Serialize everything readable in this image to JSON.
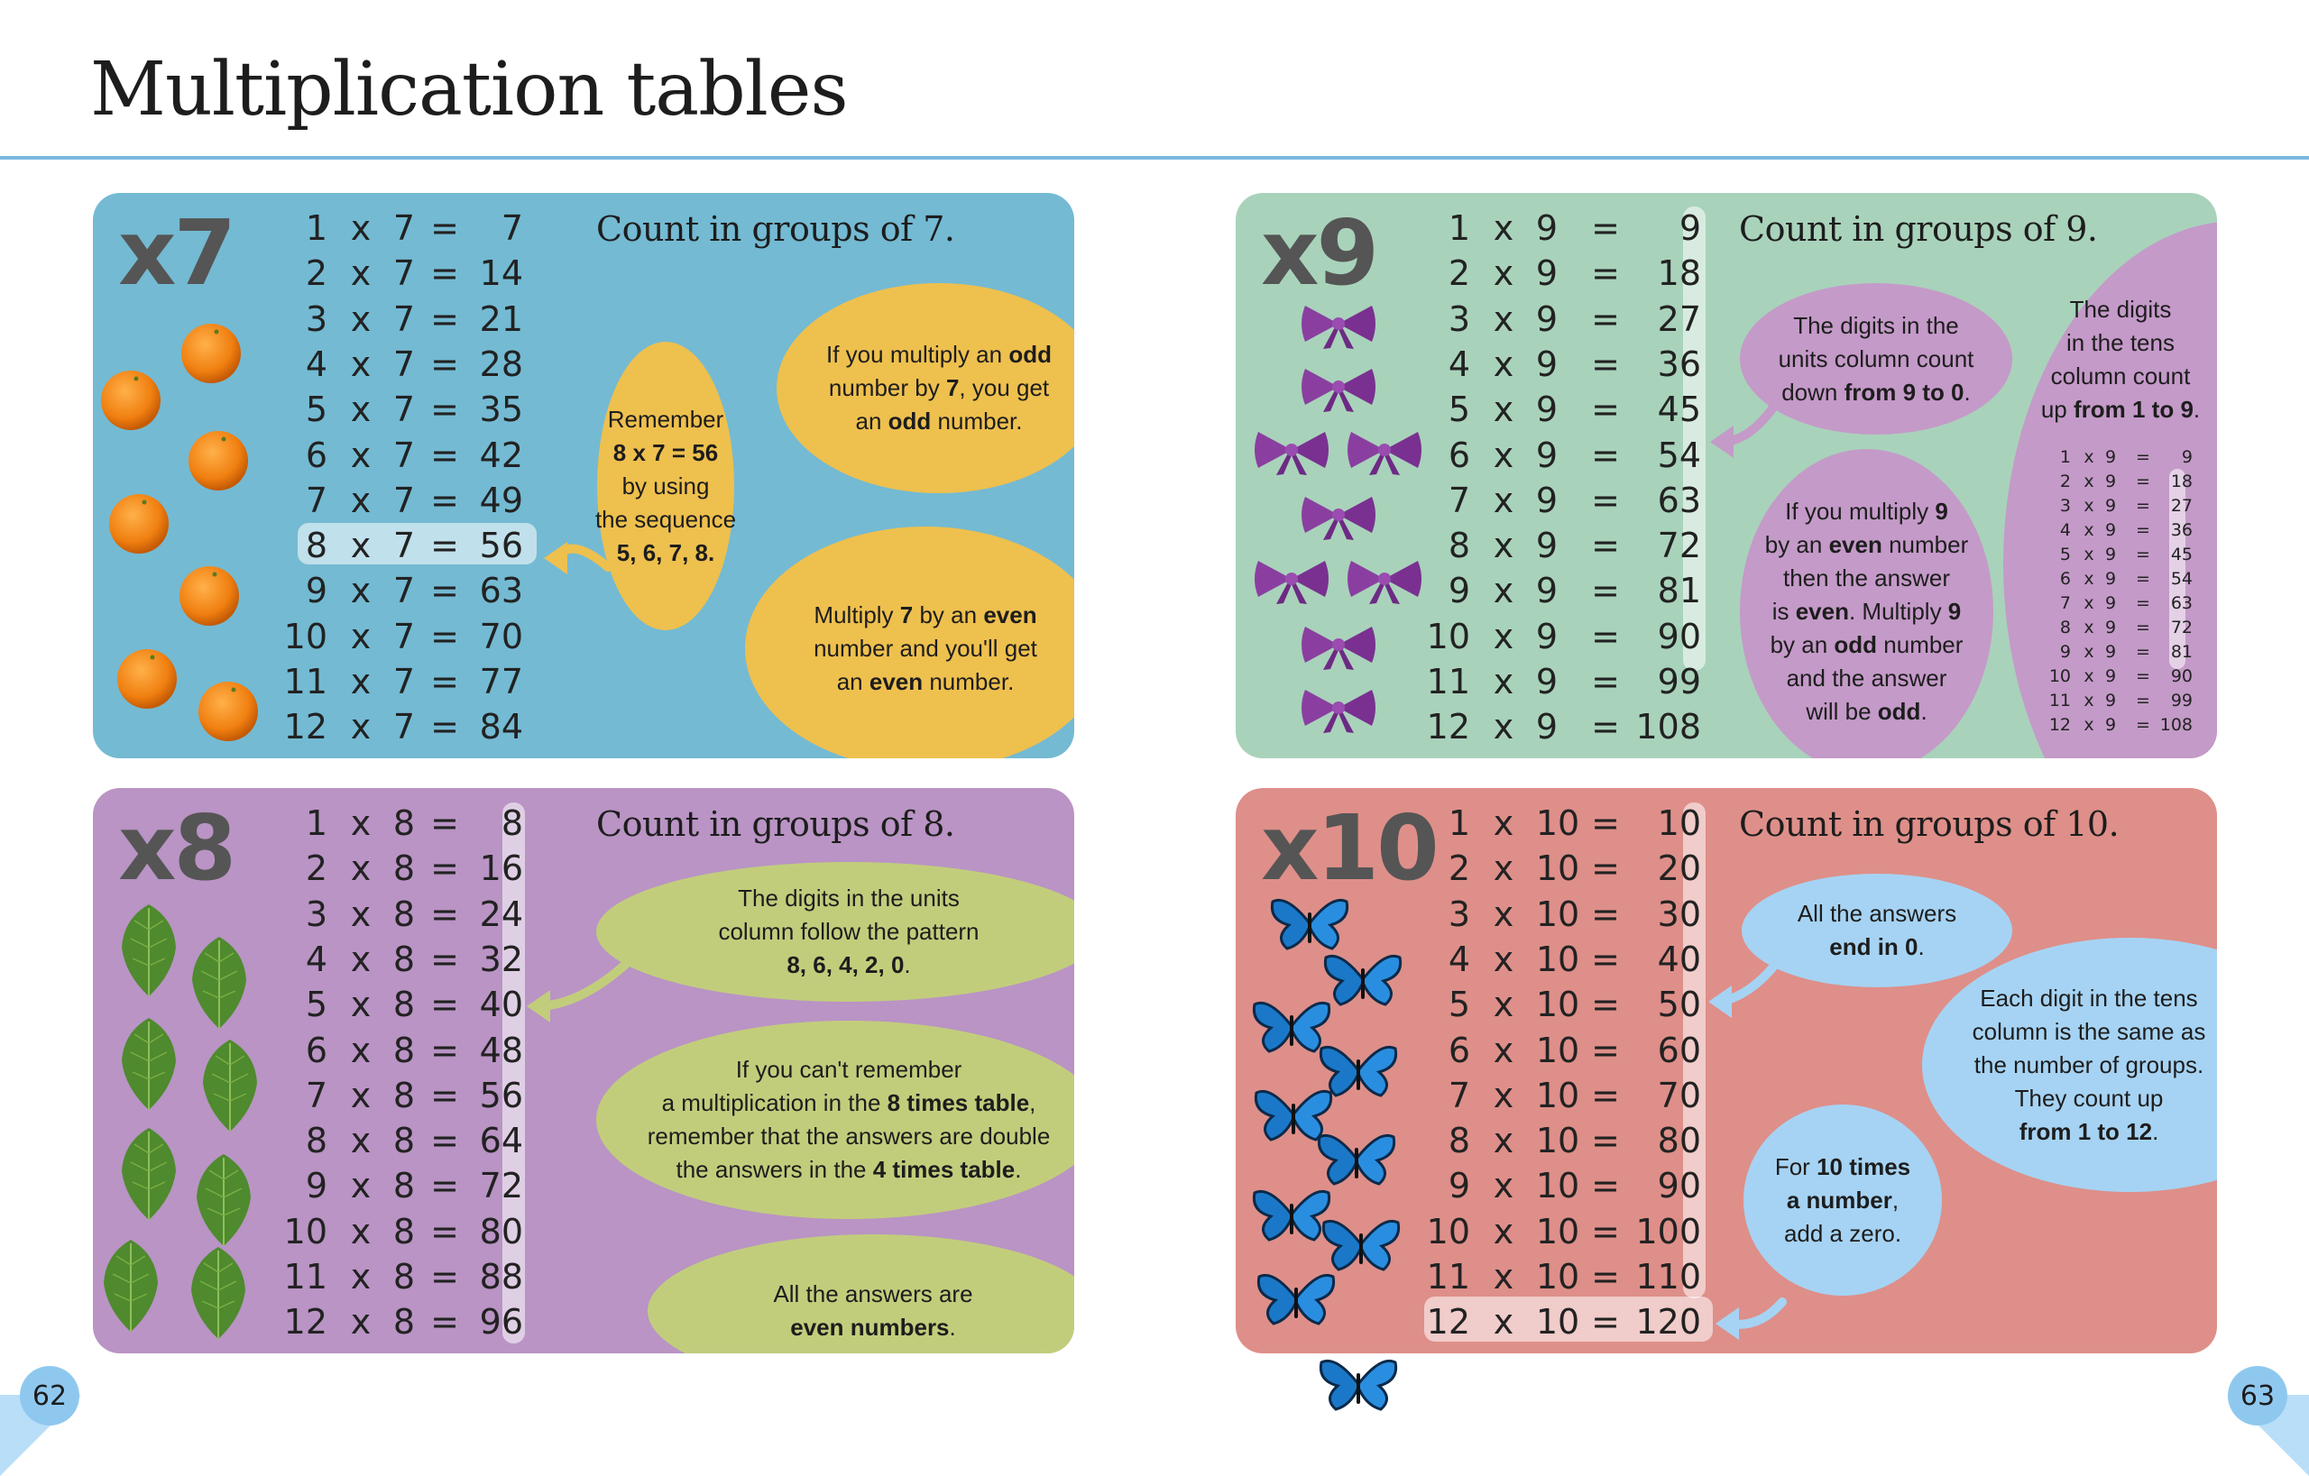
{
  "title": "Multiplication tables",
  "colors": {
    "rule": "#7ab8e0",
    "x7_panel": "#74bad3",
    "x7_bubble": "#eec04e",
    "x9_panel": "#a9d2bb",
    "x9_bubble": "#c49ac8",
    "x8_panel": "#b994c4",
    "x8_bubble": "#c2cd7c",
    "x10_panel": "#de8f89",
    "x10_bubble": "#a6d3f3"
  },
  "panels": [
    {
      "id": "x7",
      "label": "x7",
      "heading": "Count in groups of 7.",
      "icon": "orange-icon",
      "rows": [
        [
          "1",
          "x",
          "7",
          "=",
          "7"
        ],
        [
          "2",
          "x",
          "7",
          "=",
          "14"
        ],
        [
          "3",
          "x",
          "7",
          "=",
          "21"
        ],
        [
          "4",
          "x",
          "7",
          "=",
          "28"
        ],
        [
          "5",
          "x",
          "7",
          "=",
          "35"
        ],
        [
          "6",
          "x",
          "7",
          "=",
          "42"
        ],
        [
          "7",
          "x",
          "7",
          "=",
          "49"
        ],
        [
          "8",
          "x",
          "7",
          "=",
          "56"
        ],
        [
          "9",
          "x",
          "7",
          "=",
          "63"
        ],
        [
          "10",
          "x",
          "7",
          "=",
          "70"
        ],
        [
          "11",
          "x",
          "7",
          "=",
          "77"
        ],
        [
          "12",
          "x",
          "7",
          "=",
          "84"
        ]
      ],
      "highlighted_row": "8 x 7 = 56",
      "bubbles": [
        {
          "lines": [
            [
              [
                "If you multiply an ",
                false
              ],
              [
                "odd",
                true
              ]
            ],
            [
              [
                "number by ",
                false
              ],
              [
                "7",
                true
              ],
              [
                ", you get",
                false
              ]
            ],
            [
              [
                "an ",
                false
              ],
              [
                "odd",
                true
              ],
              [
                "  number.",
                false
              ]
            ]
          ]
        },
        {
          "lines": [
            [
              [
                "Remember",
                false
              ]
            ],
            [
              [
                "8 x 7 = 56",
                true
              ]
            ],
            [
              [
                "by using",
                false
              ]
            ],
            [
              [
                "the sequence",
                false
              ]
            ],
            [
              [
                "5, 6, 7, 8.",
                true
              ]
            ]
          ]
        },
        {
          "lines": [
            [
              [
                "Multiply ",
                false
              ],
              [
                "7",
                true
              ],
              [
                " by an ",
                false
              ],
              [
                "even",
                true
              ]
            ],
            [
              [
                "number and you'll get",
                false
              ]
            ],
            [
              [
                "an ",
                false
              ],
              [
                "even",
                true
              ],
              [
                " number.",
                false
              ]
            ]
          ]
        }
      ]
    },
    {
      "id": "x9",
      "label": "x9",
      "heading": "Count in groups of 9.",
      "icon": "bow-icon",
      "rows": [
        [
          "1",
          "x",
          "9",
          "=",
          "9"
        ],
        [
          "2",
          "x",
          "9",
          "=",
          "18"
        ],
        [
          "3",
          "x",
          "9",
          "=",
          "27"
        ],
        [
          "4",
          "x",
          "9",
          "=",
          "36"
        ],
        [
          "5",
          "x",
          "9",
          "=",
          "45"
        ],
        [
          "6",
          "x",
          "9",
          "=",
          "54"
        ],
        [
          "7",
          "x",
          "9",
          "=",
          "63"
        ],
        [
          "8",
          "x",
          "9",
          "=",
          "72"
        ],
        [
          "9",
          "x",
          "9",
          "=",
          "81"
        ],
        [
          "10",
          "x",
          "9",
          "=",
          "90"
        ],
        [
          "11",
          "x",
          "9",
          "=",
          "99"
        ],
        [
          "12",
          "x",
          "9",
          "=",
          "108"
        ]
      ],
      "bubbles": [
        {
          "lines": [
            [
              [
                "The digits in the",
                false
              ]
            ],
            [
              [
                "units column count",
                false
              ]
            ],
            [
              [
                "down ",
                false
              ],
              [
                "from 9 to 0",
                true
              ],
              [
                ".",
                false
              ]
            ]
          ]
        },
        {
          "lines": [
            [
              [
                "If you multiply ",
                false
              ],
              [
                "9",
                true
              ]
            ],
            [
              [
                "by an ",
                false
              ],
              [
                "even",
                true
              ],
              [
                " number",
                false
              ]
            ],
            [
              [
                "then the answer",
                false
              ]
            ],
            [
              [
                "is ",
                false
              ],
              [
                "even",
                true
              ],
              [
                ". Multiply ",
                false
              ],
              [
                "9",
                true
              ]
            ],
            [
              [
                "by an ",
                false
              ],
              [
                "odd",
                true
              ],
              [
                " number",
                false
              ]
            ],
            [
              [
                "and the answer",
                false
              ]
            ],
            [
              [
                "will be ",
                false
              ],
              [
                "odd",
                true
              ],
              [
                ".",
                false
              ]
            ]
          ]
        },
        {
          "lines": [
            [
              [
                "The digits",
                false
              ]
            ],
            [
              [
                "in the tens",
                false
              ]
            ],
            [
              [
                "column count",
                false
              ]
            ],
            [
              [
                "up ",
                false
              ],
              [
                "from 1 to 9",
                true
              ],
              [
                ".",
                false
              ]
            ]
          ]
        }
      ],
      "mini_rows": [
        [
          "1",
          "x",
          "9",
          "=",
          "9"
        ],
        [
          "2",
          "x",
          "9",
          "=",
          "18"
        ],
        [
          "3",
          "x",
          "9",
          "=",
          "27"
        ],
        [
          "4",
          "x",
          "9",
          "=",
          "36"
        ],
        [
          "5",
          "x",
          "9",
          "=",
          "45"
        ],
        [
          "6",
          "x",
          "9",
          "=",
          "54"
        ],
        [
          "7",
          "x",
          "9",
          "=",
          "63"
        ],
        [
          "8",
          "x",
          "9",
          "=",
          "72"
        ],
        [
          "9",
          "x",
          "9",
          "=",
          "81"
        ],
        [
          "10",
          "x",
          "9",
          "=",
          "90"
        ],
        [
          "11",
          "x",
          "9",
          "=",
          "99"
        ],
        [
          "12",
          "x",
          "9",
          "=",
          "108"
        ]
      ]
    },
    {
      "id": "x8",
      "label": "x8",
      "heading": "Count in groups of 8.",
      "icon": "leaf-icon",
      "rows": [
        [
          "1",
          "x",
          "8",
          "=",
          "8"
        ],
        [
          "2",
          "x",
          "8",
          "=",
          "16"
        ],
        [
          "3",
          "x",
          "8",
          "=",
          "24"
        ],
        [
          "4",
          "x",
          "8",
          "=",
          "32"
        ],
        [
          "5",
          "x",
          "8",
          "=",
          "40"
        ],
        [
          "6",
          "x",
          "8",
          "=",
          "48"
        ],
        [
          "7",
          "x",
          "8",
          "=",
          "56"
        ],
        [
          "8",
          "x",
          "8",
          "=",
          "64"
        ],
        [
          "9",
          "x",
          "8",
          "=",
          "72"
        ],
        [
          "10",
          "x",
          "8",
          "=",
          "80"
        ],
        [
          "11",
          "x",
          "8",
          "=",
          "88"
        ],
        [
          "12",
          "x",
          "8",
          "=",
          "96"
        ]
      ],
      "bubbles": [
        {
          "lines": [
            [
              [
                "The digits in the units",
                false
              ]
            ],
            [
              [
                "column follow the pattern",
                false
              ]
            ],
            [
              [
                "8, 6, 4, 2, 0",
                true
              ],
              [
                ".",
                false
              ]
            ]
          ]
        },
        {
          "lines": [
            [
              [
                "If you can't remember",
                false
              ]
            ],
            [
              [
                "a multiplication in the ",
                false
              ],
              [
                "8 times table",
                true
              ],
              [
                ",",
                false
              ]
            ],
            [
              [
                "remember that the answers are double",
                false
              ]
            ],
            [
              [
                "the answers in the ",
                false
              ],
              [
                "4 times table",
                true
              ],
              [
                ".",
                false
              ]
            ]
          ]
        },
        {
          "lines": [
            [
              [
                "All the answers are",
                false
              ]
            ],
            [
              [
                "even numbers",
                true
              ],
              [
                ".",
                false
              ]
            ]
          ]
        }
      ]
    },
    {
      "id": "x10",
      "label": "x10",
      "heading": "Count in groups of 10.",
      "icon": "butterfly-icon",
      "rows": [
        [
          "1",
          "x",
          "10",
          "=",
          "10"
        ],
        [
          "2",
          "x",
          "10",
          "=",
          "20"
        ],
        [
          "3",
          "x",
          "10",
          "=",
          "30"
        ],
        [
          "4",
          "x",
          "10",
          "=",
          "40"
        ],
        [
          "5",
          "x",
          "10",
          "=",
          "50"
        ],
        [
          "6",
          "x",
          "10",
          "=",
          "60"
        ],
        [
          "7",
          "x",
          "10",
          "=",
          "70"
        ],
        [
          "8",
          "x",
          "10",
          "=",
          "80"
        ],
        [
          "9",
          "x",
          "10",
          "=",
          "90"
        ],
        [
          "10",
          "x",
          "10",
          "=",
          "100"
        ],
        [
          "11",
          "x",
          "10",
          "=",
          "110"
        ],
        [
          "12",
          "x",
          "10",
          "=",
          "120"
        ]
      ],
      "highlighted_row": "12 x 10 = 120",
      "bubbles": [
        {
          "lines": [
            [
              [
                "All the answers",
                false
              ]
            ],
            [
              [
                "end in 0",
                true
              ],
              [
                ".",
                false
              ]
            ]
          ]
        },
        {
          "lines": [
            [
              [
                "Each digit in the tens",
                false
              ]
            ],
            [
              [
                "column is the same as",
                false
              ]
            ],
            [
              [
                "the number of groups.",
                false
              ]
            ],
            [
              [
                "They count up",
                false
              ]
            ],
            [
              [
                "from 1 to 12",
                true
              ],
              [
                ".",
                false
              ]
            ]
          ]
        },
        {
          "lines": [
            [
              [
                "For ",
                false
              ],
              [
                "10 times",
                true
              ]
            ],
            [
              [
                "a number",
                true
              ],
              [
                ",",
                false
              ]
            ],
            [
              [
                "add a zero.",
                false
              ]
            ]
          ]
        }
      ]
    }
  ],
  "page_numbers": {
    "left": "62",
    "right": "63"
  }
}
